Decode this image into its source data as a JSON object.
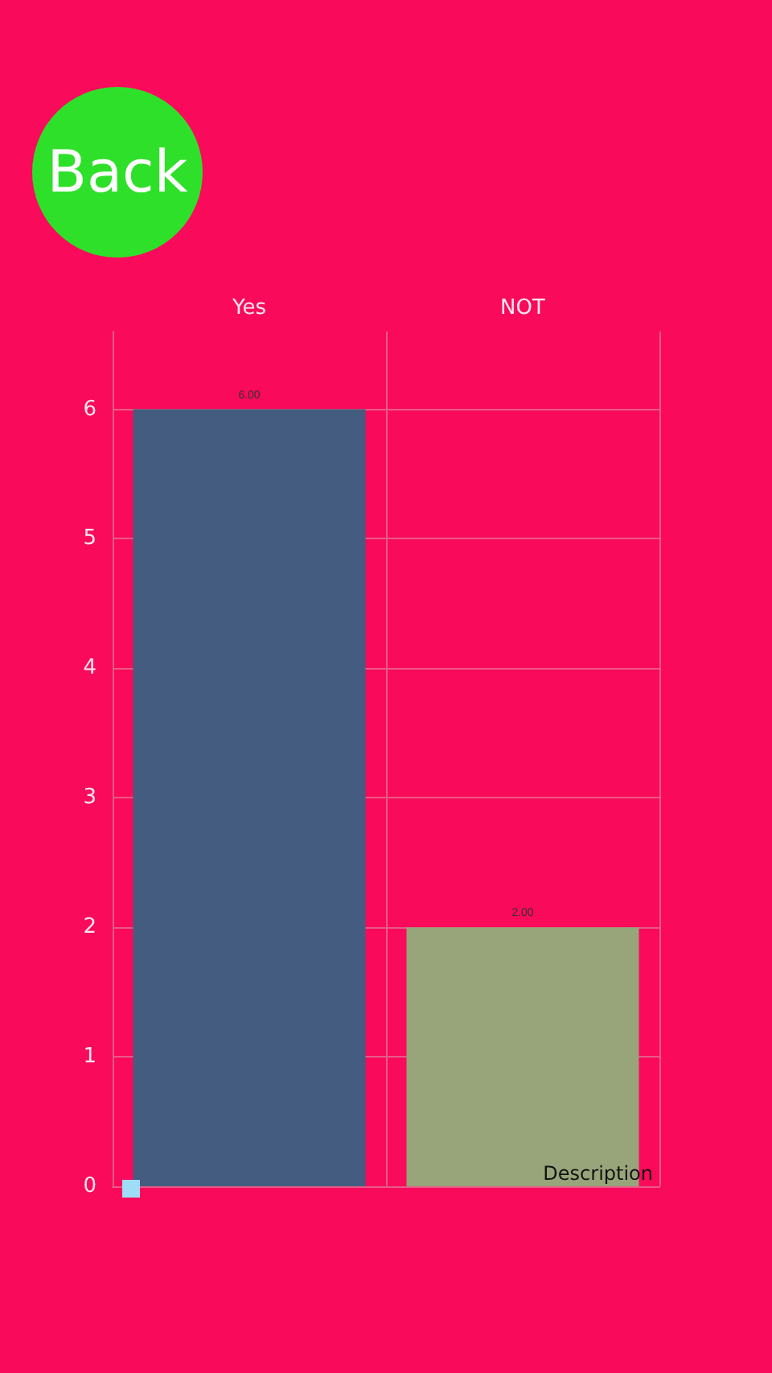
{
  "chart_data": {
    "type": "bar",
    "categories": [
      "Yes",
      "NOT"
    ],
    "values": [
      6,
      2
    ],
    "colors": [
      "#435c80",
      "#98a57b"
    ],
    "value_labels": [
      "6.00",
      "2.00"
    ],
    "ylim": [
      0,
      6.6
    ],
    "yticks": [
      0,
      1,
      2,
      3,
      4,
      5,
      6
    ],
    "grid": true,
    "annotations": [
      "Back",
      "Description"
    ]
  }
}
